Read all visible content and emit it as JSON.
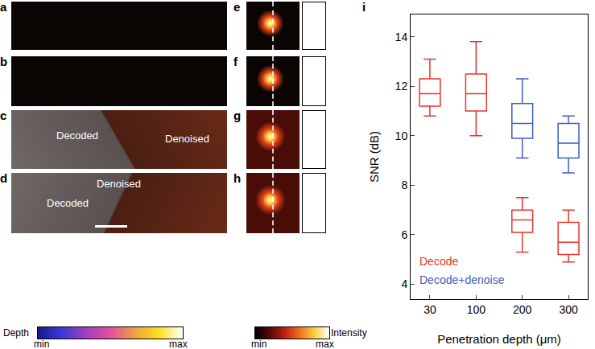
{
  "figure": {
    "image_panels": [
      "a",
      "b",
      "c",
      "d"
    ],
    "zoom_panels": [
      "e",
      "f",
      "g",
      "h"
    ],
    "chart_panel": "i",
    "overlays": {
      "c": [
        "Decoded",
        "Denoised"
      ],
      "d": [
        "Decoded",
        "Denoised"
      ]
    },
    "colorbars": [
      {
        "title": "Depth",
        "min_label": "min",
        "max_label": "max"
      },
      {
        "title": "Intensity",
        "min_label": "min",
        "max_label": "max"
      }
    ]
  },
  "chart_data": {
    "type": "box",
    "x_label": "Penetration depth (μm)",
    "y_label": "SNR (dB)",
    "categories": [
      "30",
      "100",
      "200",
      "300"
    ],
    "ylim": [
      3.4,
      14.9
    ],
    "yticks": [
      4,
      6,
      8,
      10,
      12,
      14
    ],
    "grid": false,
    "legend": "lower left",
    "series": [
      {
        "name": "Decode",
        "color": "#e8352a",
        "lower": [
          10.8,
          10.0,
          5.3,
          4.9
        ],
        "q1": [
          11.2,
          11.0,
          6.1,
          5.2
        ],
        "median": [
          11.7,
          11.7,
          6.6,
          5.7
        ],
        "q3": [
          12.3,
          12.5,
          7.0,
          6.5
        ],
        "upper": [
          13.1,
          13.8,
          7.5,
          7.0
        ]
      },
      {
        "name": "Decode+denoise",
        "color": "#3d5cc4",
        "lower": [
          null,
          null,
          9.1,
          8.5
        ],
        "q1": [
          null,
          null,
          9.9,
          9.1
        ],
        "median": [
          null,
          null,
          10.5,
          9.7
        ],
        "q3": [
          null,
          null,
          11.3,
          10.5
        ],
        "upper": [
          null,
          null,
          12.3,
          10.8
        ]
      }
    ]
  }
}
